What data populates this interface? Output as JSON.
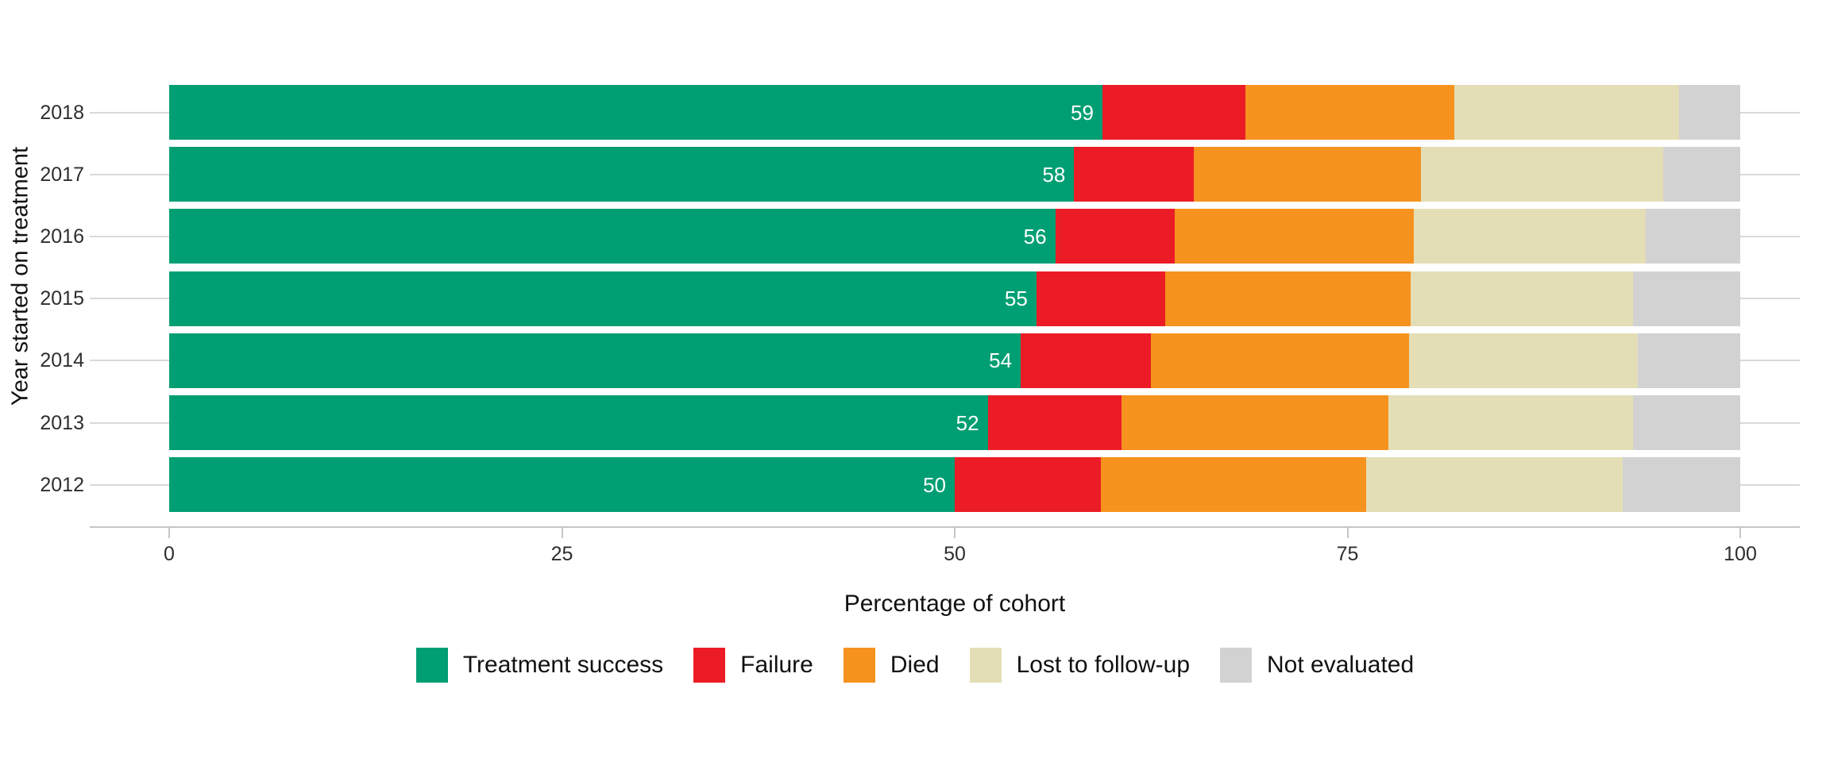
{
  "figure": {
    "background": "#FFFFFF"
  },
  "axes": {
    "x_title": "Percentage of cohort",
    "y_title": "Year started on treatment",
    "x_tick_labels": [
      "0",
      "25",
      "50",
      "75",
      "100"
    ],
    "x_tick_values": [
      0,
      25,
      50,
      75,
      100
    ],
    "x_range": [
      0,
      100
    ]
  },
  "colors": {
    "treatment_success": "#009E73",
    "failure": "#EB1C26",
    "died": "#F6921E",
    "lost_to_follow_up": "#E4DEB6",
    "not_evaluated": "#D2D2D2",
    "gridline": "#D9D9D9",
    "axis_line": "#C6C6C6",
    "bar_value_text": "#FFFFFF"
  },
  "legend": {
    "position": "bottom",
    "items": [
      {
        "label": "Treatment success",
        "color": "#009E73"
      },
      {
        "label": "Failure",
        "color": "#EB1C26"
      },
      {
        "label": "Died",
        "color": "#F6921E"
      },
      {
        "label": "Lost to follow-up",
        "color": "#E4DEB6"
      },
      {
        "label": "Not evaluated",
        "color": "#D2D2D2"
      }
    ]
  },
  "chart_data": {
    "type": "bar",
    "orientation": "horizontal",
    "stacked": true,
    "title": "",
    "xlabel": "Percentage of cohort",
    "ylabel": "Year started on treatment",
    "xlim": [
      0,
      100
    ],
    "grid": "horizontal category gridlines only",
    "legend_position": "bottom",
    "categories": [
      "2018",
      "2017",
      "2016",
      "2015",
      "2014",
      "2013",
      "2012"
    ],
    "series": [
      {
        "name": "Treatment success",
        "color": "#009E73",
        "values": [
          59.4,
          57.6,
          56.4,
          55.2,
          54.2,
          52.1,
          50.0
        ],
        "shown_labels": [
          "59",
          "58",
          "56",
          "55",
          "54",
          "52",
          "50"
        ]
      },
      {
        "name": "Failure",
        "color": "#EB1C26",
        "values": [
          9.1,
          7.6,
          7.6,
          8.2,
          8.3,
          8.5,
          9.3
        ]
      },
      {
        "name": "Died",
        "color": "#F6921E",
        "values": [
          13.3,
          14.5,
          15.2,
          15.6,
          16.4,
          17.0,
          16.9
        ]
      },
      {
        "name": "Lost to follow-up",
        "color": "#E4DEB6",
        "values": [
          14.3,
          15.4,
          14.8,
          14.2,
          14.6,
          15.6,
          16.3
        ]
      },
      {
        "name": "Not evaluated",
        "color": "#D2D2D2",
        "values": [
          3.9,
          4.9,
          6.0,
          6.8,
          6.5,
          6.8,
          7.5
        ]
      }
    ],
    "value_label_note": "Only the Treatment success percentage is labeled, in white, right-aligned inside the green segment"
  }
}
